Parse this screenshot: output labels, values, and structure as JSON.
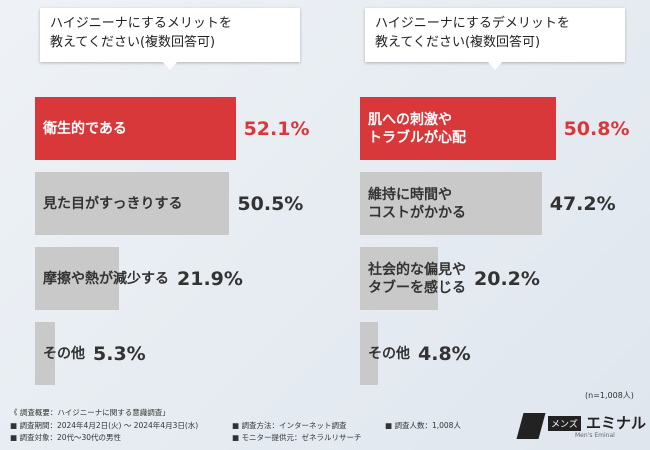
{
  "chart_data": [
    {
      "type": "bar",
      "title": "ハイジニーナにするメリットを\n教えてください(複数回答可)",
      "categories": [
        "衛生的である",
        "見た目がすっきりする",
        "摩擦や熱が減少する",
        "その他"
      ],
      "values": [
        52.1,
        50.5,
        21.9,
        5.3
      ],
      "value_labels": [
        "52.1%",
        "50.5%",
        "21.9%",
        "5.3%"
      ],
      "colors": [
        "#d8383a",
        "#c9c9c9",
        "#c9c9c9",
        "#c9c9c9"
      ]
    },
    {
      "type": "bar",
      "title": "ハイジニーナにするデメリットを\n教えてください(複数回答可)",
      "categories": [
        "肌への刺激や\nトラブルが心配",
        "維持に時間や\nコストがかかる",
        "社会的な偏見や\nタブーを感じる",
        "その他"
      ],
      "values": [
        50.8,
        47.2,
        20.2,
        4.8
      ],
      "value_labels": [
        "50.8%",
        "47.2%",
        "20.2%",
        "4.8%"
      ],
      "colors": [
        "#d8383a",
        "#c9c9c9",
        "#c9c9c9",
        "#c9c9c9"
      ]
    }
  ],
  "sample_note": "(n=1,008人)",
  "footer": {
    "heading": "《 調査概要：ハイジニーナに関する意識調査」",
    "items": [
      "■ 調査期間：2024年4月2日(火) 〜 2024年4月3日(水)",
      "■ 調査対象：20代〜30代の男性",
      "■ 調査方法：インターネット調査",
      "■ モニター提供元：ゼネラルリサーチ",
      "■ 調査人数：1,008人"
    ]
  },
  "logo": {
    "name": "エミナル",
    "tag": "メンズ",
    "sub": "Men's Eminal"
  }
}
